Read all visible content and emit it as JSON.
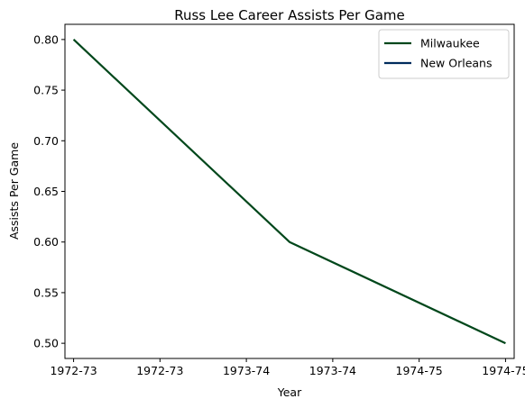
{
  "chart_data": {
    "type": "line",
    "title": "Russ Lee Career Assists Per Game",
    "xlabel": "Year",
    "ylabel": "Assists Per Game",
    "x_tick_labels": [
      "1972-73",
      "1972-73",
      "1973-74",
      "1973-74",
      "1974-75",
      "1974-75"
    ],
    "y_ticks": [
      0.5,
      0.55,
      0.6,
      0.65,
      0.7,
      0.75,
      0.8
    ],
    "y_tick_labels": [
      "0.50",
      "0.55",
      "0.60",
      "0.65",
      "0.70",
      "0.75",
      "0.80"
    ],
    "xlim": [
      -0.1,
      5.1
    ],
    "ylim": [
      0.485,
      0.815
    ],
    "grid": false,
    "legend_position": "top-right",
    "series": [
      {
        "name": "Milwaukee",
        "color": "#00471B",
        "points": [
          {
            "x": 0,
            "y": 0.8
          },
          {
            "x": 2.5,
            "y": 0.6
          },
          {
            "x": 5,
            "y": 0.5
          }
        ]
      },
      {
        "name": "New Orleans",
        "color": "#002B5C",
        "points": []
      }
    ]
  }
}
